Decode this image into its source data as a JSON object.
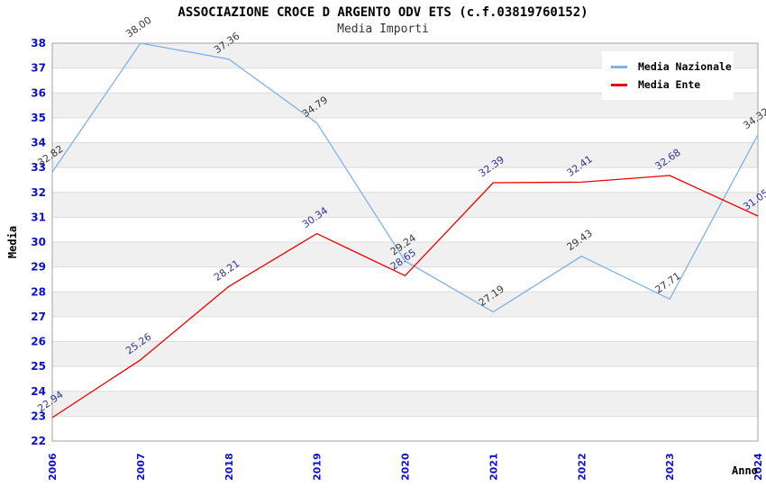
{
  "chart_data": {
    "type": "line",
    "title": "ASSOCIAZIONE CROCE D ARGENTO ODV ETS (c.f.03819760152)",
    "subtitle": "Media Importi",
    "xlabel": "Anno",
    "ylabel": "Media",
    "categories": [
      "2006",
      "2007",
      "2018",
      "2019",
      "2020",
      "2021",
      "2022",
      "2023",
      "2024"
    ],
    "series": [
      {
        "name": "Media Nazionale",
        "color": "#7FB2E8",
        "label_color": "#3A3A3A",
        "values": [
          32.82,
          38.0,
          37.36,
          34.79,
          29.24,
          27.19,
          29.43,
          27.71,
          34.32
        ]
      },
      {
        "name": "Media Ente",
        "color": "#EE0000",
        "label_color": "#333399",
        "values": [
          22.94,
          25.26,
          28.21,
          30.34,
          28.65,
          32.39,
          32.41,
          32.68,
          31.05
        ]
      }
    ],
    "ylim": [
      22,
      38
    ],
    "y_ticks": [
      22,
      23,
      24,
      25,
      26,
      27,
      28,
      29,
      30,
      31,
      32,
      33,
      34,
      35,
      36,
      37,
      38
    ],
    "legend_position": "top-right",
    "grid": "horizontal-bands",
    "colors": {
      "tick_label": "#0F0FCE",
      "band": "#F0F0F0",
      "gridline": "#DCDCDC",
      "plot_border": "#A3A3A3",
      "title": "#000000",
      "subtitle": "#333333",
      "legend_bg": "#FFFFFF"
    }
  }
}
